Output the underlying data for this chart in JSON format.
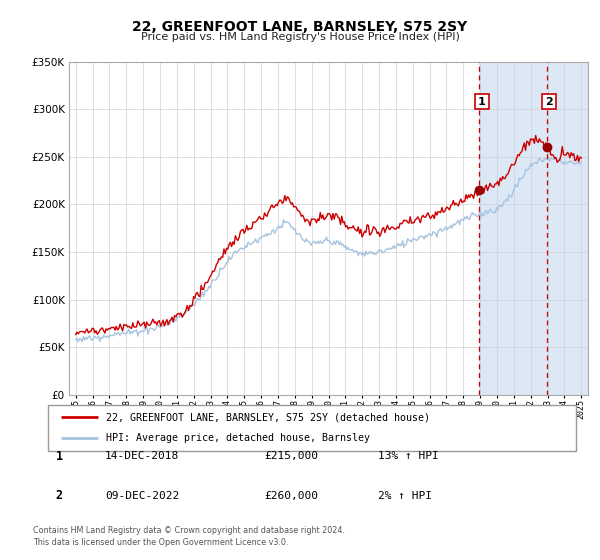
{
  "title": "22, GREENFOOT LANE, BARNSLEY, S75 2SY",
  "subtitle": "Price paid vs. HM Land Registry's House Price Index (HPI)",
  "legend_line1": "22, GREENFOOT LANE, BARNSLEY, S75 2SY (detached house)",
  "legend_line2": "HPI: Average price, detached house, Barnsley",
  "sale1_label": "1",
  "sale1_date": "14-DEC-2018",
  "sale1_price": "£215,000",
  "sale1_hpi": "13% ↑ HPI",
  "sale2_label": "2",
  "sale2_date": "09-DEC-2022",
  "sale2_price": "£260,000",
  "sale2_hpi": "2% ↑ HPI",
  "footer1": "Contains HM Land Registry data © Crown copyright and database right 2024.",
  "footer2": "This data is licensed under the Open Government Licence v3.0.",
  "hpi_color": "#a8c4e0",
  "price_color": "#cc0000",
  "sale_dot_color": "#990000",
  "shading_color": "#dce8f5",
  "vline_color": "#cc0000",
  "grid_color": "#d0d0d0",
  "ylim": [
    0,
    350000
  ],
  "yticks": [
    0,
    50000,
    100000,
    150000,
    200000,
    250000,
    300000,
    350000
  ],
  "sale1_x": 2018.96,
  "sale1_y": 215000,
  "sale2_x": 2022.94,
  "sale2_y": 260000,
  "vline1_x": 2018.96,
  "vline2_x": 2022.94,
  "xmin": 1994.6,
  "xmax": 2025.4
}
